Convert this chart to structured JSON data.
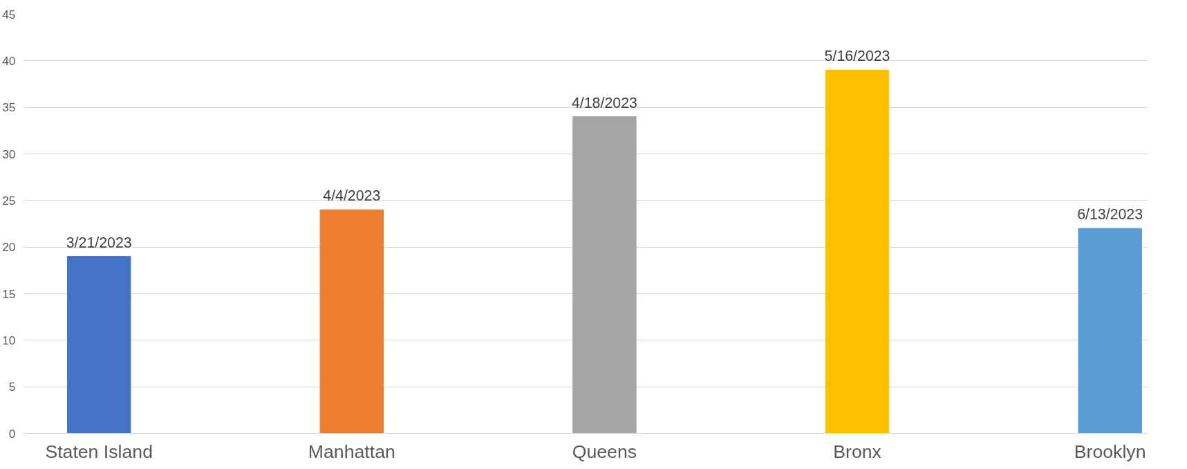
{
  "chart_data": {
    "type": "bar",
    "categories": [
      "Staten Island",
      "Manhattan",
      "Queens",
      "Bronx",
      "Brooklyn"
    ],
    "values": [
      19,
      24,
      34,
      39,
      22
    ],
    "colors": [
      "#4472c4",
      "#ed7d31",
      "#a5a5a5",
      "#ffc000",
      "#5b9bd5"
    ],
    "value_labels": [
      "3/21/2023",
      "4/4/2023",
      "4/18/2023",
      "5/16/2023",
      "6/13/2023"
    ],
    "ylim": [
      0,
      45
    ],
    "yticks": [
      0,
      5,
      10,
      15,
      20,
      25,
      30,
      35,
      40,
      45
    ],
    "grid": "y"
  }
}
